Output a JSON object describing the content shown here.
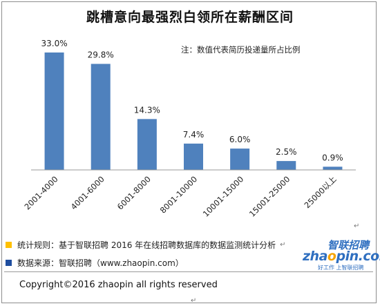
{
  "header": {
    "title": "跳槽意向最强烈白领所在薪酬区间",
    "note": "注：数值代表简历投递量所占比例"
  },
  "chart_data": {
    "type": "bar",
    "title": "跳槽意向最强烈白领所在薪酬区间",
    "categories": [
      "2001-4000",
      "4001-6000",
      "6001-8000",
      "8001-10000",
      "10001-15000",
      "15001-25000",
      "25000以上"
    ],
    "values": [
      33.0,
      29.8,
      14.3,
      7.4,
      6.0,
      2.5,
      0.9
    ],
    "value_labels": [
      "33.0%",
      "29.8%",
      "14.3%",
      "7.4%",
      "6.0%",
      "2.5%",
      "0.9%"
    ],
    "unit": "%",
    "ylim": [
      0,
      33
    ],
    "grid": false,
    "color": "#4f81bd"
  },
  "footer": {
    "rule_label": "统计规则：基于智联招聘 2016 年在线招聘数据库的数据监测统计分析",
    "source_label": "数据来源：智联招聘（www.zhaopin.com）",
    "rule_color": "#ffc000",
    "source_color": "#1f4e9f",
    "copyright": "Copyright©2016 zhaopin all rights reserved",
    "return_mark": "↵"
  },
  "logo": {
    "cn": "智联招聘",
    "en_prefix": "zha",
    "en_o": "o",
    "en_suffix": "pin.com",
    "sub": "好工作 上智联招聘"
  }
}
